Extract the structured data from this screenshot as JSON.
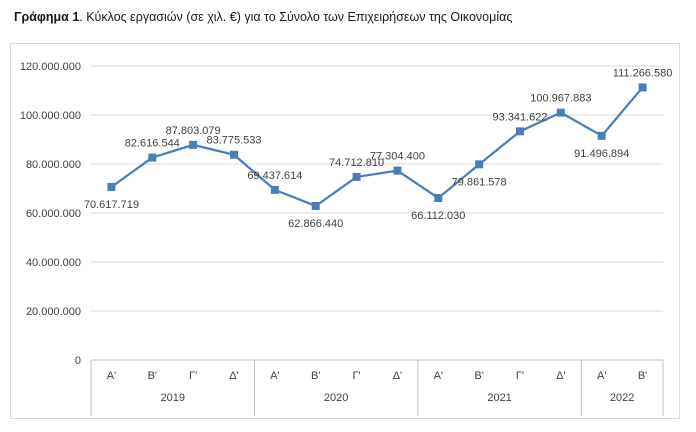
{
  "caption": {
    "label": "Γράφημα 1",
    "text": ". Κύκλος εργασιών (σε χιλ. €) για το Σύνολο των Επιχειρήσεων της Οικονομίας"
  },
  "chart_data": {
    "type": "line",
    "title": "",
    "xlabel": "",
    "ylabel": "",
    "ylim": [
      0,
      120000000
    ],
    "yticks": [
      0,
      20000000,
      40000000,
      60000000,
      80000000,
      100000000,
      120000000
    ],
    "ytick_labels": [
      "0",
      "20.000.000",
      "40.000.000",
      "60.000.000",
      "80.000.000",
      "100.000.000",
      "120.000.000"
    ],
    "grid": true,
    "categories": [
      "Α'",
      "Β'",
      "Γ'",
      "Δ'",
      "Α'",
      "Β'",
      "Γ'",
      "Δ'",
      "Α'",
      "Β'",
      "Γ'",
      "Δ'",
      "Α'",
      "Β'"
    ],
    "groups": [
      {
        "label": "2019",
        "count": 4
      },
      {
        "label": "2020",
        "count": 4
      },
      {
        "label": "2021",
        "count": 4
      },
      {
        "label": "2022",
        "count": 2
      }
    ],
    "series": [
      {
        "color": "#4a7ebb",
        "values": [
          70617719,
          82616544,
          87803079,
          83775533,
          69437614,
          62866440,
          74712810,
          77304400,
          66112030,
          79861578,
          93341622,
          100967883,
          91496894,
          111266580
        ],
        "labels": [
          "70.617.719",
          "82.616.544",
          "87.803.079",
          "83.775.533",
          "69.437.614",
          "62.866.440",
          "74.712.810",
          "77.304.400",
          "66.112.030",
          "79.861.578",
          "93.341.622",
          "100.967.883",
          "91.496.894",
          "111.266.580"
        ],
        "label_positions": [
          "below",
          "above",
          "above",
          "above",
          "above",
          "below",
          "above",
          "above",
          "below",
          "below",
          "above",
          "above",
          "below",
          "above"
        ]
      }
    ]
  }
}
